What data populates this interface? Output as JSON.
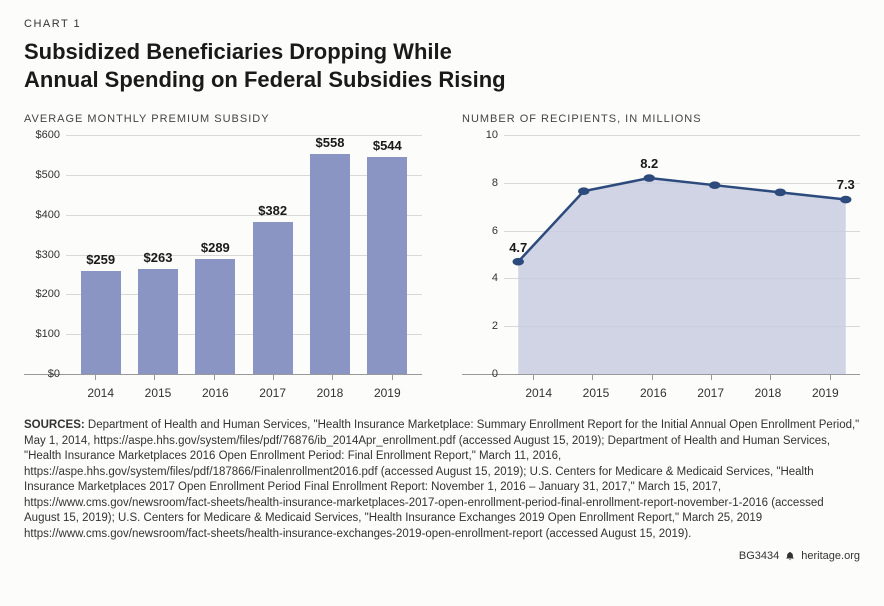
{
  "chart_label": "CHART 1",
  "title_line1": "Subsidized Beneficiaries Dropping While",
  "title_line2": "Annual Spending on Federal Subsidies Rising",
  "bar_chart": {
    "type": "bar",
    "panel_title": "AVERAGE MONTHLY PREMIUM SUBSIDY",
    "categories": [
      "2014",
      "2015",
      "2016",
      "2017",
      "2018",
      "2019"
    ],
    "values": [
      259,
      263,
      289,
      382,
      558,
      544
    ],
    "value_labels": [
      "$259",
      "$263",
      "$289",
      "$382",
      "$558",
      "$544"
    ],
    "bar_color": "#8a95c4",
    "ylim": [
      0,
      600
    ],
    "yticks": [
      0,
      100,
      200,
      300,
      400,
      500,
      600
    ],
    "ytick_labels": [
      "$0",
      "$100",
      "$200",
      "$300",
      "$400",
      "$500",
      "$600"
    ],
    "grid_color": "#d8d8d8",
    "background_color": "#fcfcfa",
    "label_fontsize": 13,
    "tick_fontsize": 11
  },
  "line_chart": {
    "type": "area",
    "panel_title": "NUMBER OF RECIPIENTS, IN MILLIONS",
    "categories": [
      "2014",
      "2015",
      "2016",
      "2017",
      "2018",
      "2019"
    ],
    "values": [
      4.7,
      7.65,
      8.2,
      7.9,
      7.6,
      7.3
    ],
    "point_labels": {
      "0": "4.7",
      "2": "8.2",
      "5": "7.3"
    },
    "line_color": "#2c4a7c",
    "line_width": 2.5,
    "marker_color": "#2c4a7c",
    "marker_size": 4,
    "fill_color": "#c8cde0",
    "fill_opacity": 0.85,
    "ylim": [
      0,
      10
    ],
    "yticks": [
      0,
      2,
      4,
      6,
      8,
      10
    ],
    "ytick_labels": [
      "0",
      "2",
      "4",
      "6",
      "8",
      "10"
    ],
    "grid_color": "#d8d8d8",
    "label_fontsize": 13,
    "tick_fontsize": 11
  },
  "sources_label": "SOURCES:",
  "sources_text": " Department of Health and Human Services, \"Health Insurance Marketplace: Summary Enrollment Report for the Initial Annual Open Enrollment Period,\" May 1, 2014, https://aspe.hhs.gov/system/files/pdf/76876/ib_2014Apr_enrollment.pdf (accessed August 15, 2019); Department of Health and Human Services, \"Health Insurance Marketplaces 2016 Open Enrollment Period: Final Enrollment Report,\" March 11, 2016, https://aspe.hhs.gov/system/files/pdf/187866/Finalenrollment2016.pdf (accessed August 15, 2019); U.S. Centers for Medicare & Medicaid Services, \"Health Insurance Marketplaces 2017 Open Enrollment Period Final Enrollment Report: November 1, 2016 – January 31, 2017,\" March 15, 2017, https://www.cms.gov/newsroom/fact-sheets/health-insurance-marketplaces-2017-open-enrollment-period-final-enrollment-report-november-1-2016 (accessed August 15, 2019); U.S. Centers for Medicare & Medicaid Services, \"Health Insurance Exchanges 2019 Open Enrollment Report,\" March 25, 2019 https://www.cms.gov/newsroom/fact-sheets/health-insurance-exchanges-2019-open-enrollment-report (accessed August 15, 2019).",
  "footer_id": "BG3434",
  "footer_site": "heritage.org"
}
